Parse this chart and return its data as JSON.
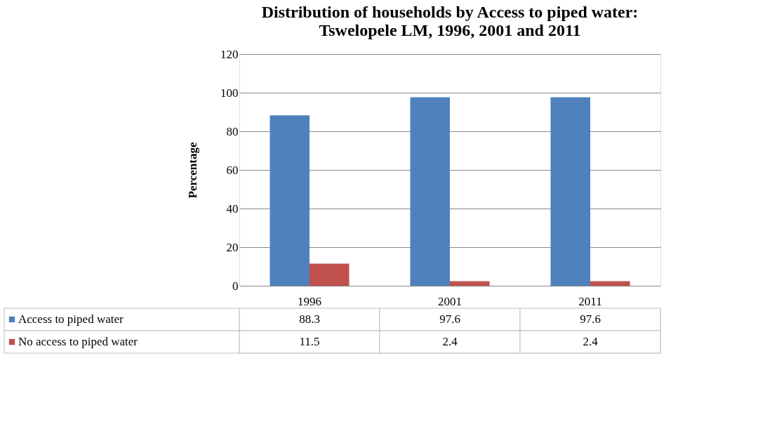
{
  "chart_data": {
    "type": "bar",
    "title": "Distribution of households by Access to piped water:\nTswelopele LM, 1996, 2001 and 2011",
    "ylabel": "Percentage",
    "categories": [
      "1996",
      "2001",
      "2011"
    ],
    "series": [
      {
        "name": "Access to piped water",
        "color": "#4f81bd",
        "values": [
          88.3,
          97.6,
          97.6
        ]
      },
      {
        "name": "No access to piped water",
        "color": "#c0504d",
        "values": [
          11.5,
          2.4,
          2.4
        ]
      }
    ],
    "ylim": [
      0,
      120
    ],
    "yticks": [
      0,
      20,
      40,
      60,
      80,
      100,
      120
    ],
    "grid": "y",
    "legend": "bottom",
    "data_labels": true
  }
}
